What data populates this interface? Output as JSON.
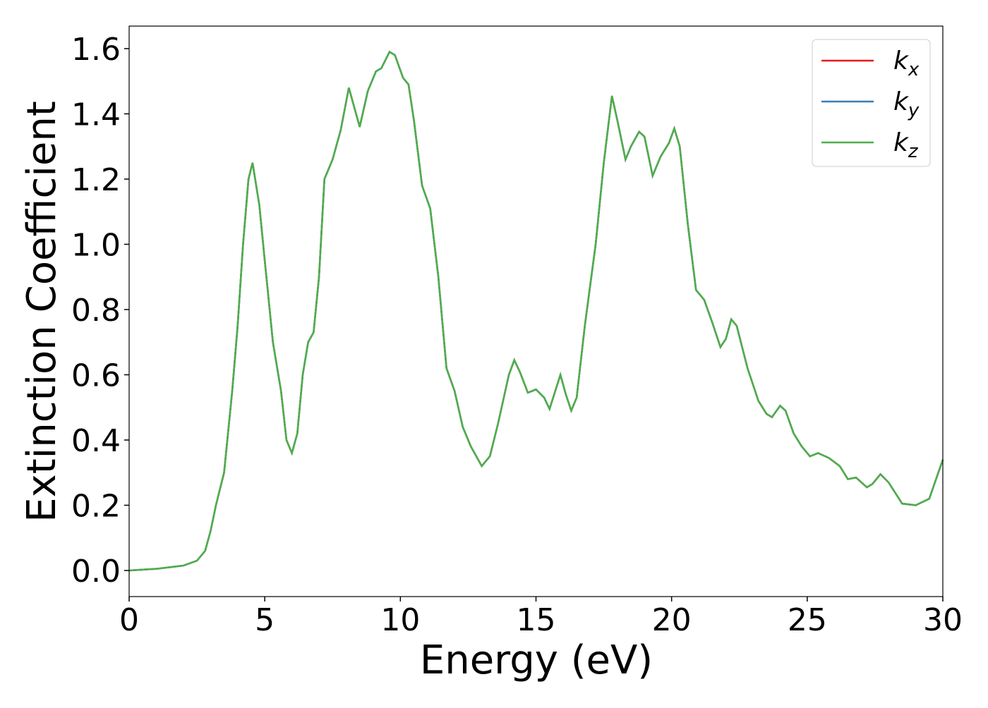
{
  "chart_data": {
    "type": "line",
    "xlabel": "Energy (eV)",
    "ylabel": "Extinction Coefficient",
    "x": [
      0,
      1,
      2,
      2.5,
      2.8,
      3.0,
      3.2,
      3.5,
      3.8,
      4.0,
      4.2,
      4.4,
      4.55,
      4.8,
      5.0,
      5.3,
      5.6,
      5.8,
      6.0,
      6.2,
      6.4,
      6.6,
      6.8,
      7.0,
      7.2,
      7.5,
      7.8,
      8.1,
      8.3,
      8.5,
      8.8,
      9.1,
      9.3,
      9.6,
      9.8,
      10.1,
      10.3,
      10.5,
      10.8,
      11.1,
      11.4,
      11.7,
      12.0,
      12.3,
      12.6,
      13.0,
      13.3,
      13.6,
      14.0,
      14.2,
      14.4,
      14.7,
      15.0,
      15.3,
      15.5,
      15.9,
      16.1,
      16.3,
      16.5,
      16.8,
      17.2,
      17.5,
      17.8,
      18.0,
      18.3,
      18.5,
      18.8,
      19.0,
      19.3,
      19.6,
      19.9,
      20.1,
      20.3,
      20.6,
      20.9,
      21.2,
      21.5,
      21.8,
      22.0,
      22.2,
      22.4,
      22.8,
      23.2,
      23.5,
      23.7,
      24.0,
      24.2,
      24.5,
      24.8,
      25.1,
      25.4,
      25.8,
      26.2,
      26.5,
      26.8,
      27.2,
      27.4,
      27.7,
      28.0,
      28.5,
      29.0,
      29.5,
      30
    ],
    "series": [
      {
        "name": "k_x",
        "color": "#e41a1c",
        "values": [
          0,
          0.005,
          0.015,
          0.03,
          0.06,
          0.12,
          0.2,
          0.3,
          0.55,
          0.75,
          1.0,
          1.2,
          1.25,
          1.12,
          0.95,
          0.7,
          0.55,
          0.4,
          0.36,
          0.42,
          0.6,
          0.7,
          0.73,
          0.9,
          1.2,
          1.26,
          1.35,
          1.48,
          1.42,
          1.36,
          1.47,
          1.53,
          1.54,
          1.59,
          1.58,
          1.51,
          1.49,
          1.38,
          1.18,
          1.11,
          0.9,
          0.62,
          0.55,
          0.44,
          0.38,
          0.32,
          0.35,
          0.45,
          0.6,
          0.645,
          0.61,
          0.545,
          0.555,
          0.53,
          0.495,
          0.6,
          0.54,
          0.49,
          0.53,
          0.75,
          1.0,
          1.25,
          1.455,
          1.38,
          1.26,
          1.3,
          1.345,
          1.33,
          1.21,
          1.27,
          1.31,
          1.355,
          1.3,
          1.06,
          0.86,
          0.83,
          0.76,
          0.685,
          0.71,
          0.77,
          0.75,
          0.62,
          0.52,
          0.48,
          0.47,
          0.505,
          0.49,
          0.42,
          0.38,
          0.35,
          0.36,
          0.345,
          0.32,
          0.28,
          0.285,
          0.255,
          0.265,
          0.295,
          0.27,
          0.205,
          0.2,
          0.22,
          0.34
        ]
      },
      {
        "name": "k_y",
        "color": "#377eb8",
        "values": [
          0,
          0.005,
          0.015,
          0.03,
          0.06,
          0.12,
          0.2,
          0.3,
          0.55,
          0.75,
          1.0,
          1.2,
          1.25,
          1.12,
          0.95,
          0.7,
          0.55,
          0.4,
          0.36,
          0.42,
          0.6,
          0.7,
          0.73,
          0.9,
          1.2,
          1.26,
          1.35,
          1.48,
          1.42,
          1.36,
          1.47,
          1.53,
          1.54,
          1.59,
          1.58,
          1.51,
          1.49,
          1.38,
          1.18,
          1.11,
          0.9,
          0.62,
          0.55,
          0.44,
          0.38,
          0.32,
          0.35,
          0.45,
          0.6,
          0.645,
          0.61,
          0.545,
          0.555,
          0.53,
          0.495,
          0.6,
          0.54,
          0.49,
          0.53,
          0.75,
          1.0,
          1.25,
          1.455,
          1.38,
          1.26,
          1.3,
          1.345,
          1.33,
          1.21,
          1.27,
          1.31,
          1.355,
          1.3,
          1.06,
          0.86,
          0.83,
          0.76,
          0.685,
          0.71,
          0.77,
          0.75,
          0.62,
          0.52,
          0.48,
          0.47,
          0.505,
          0.49,
          0.42,
          0.38,
          0.35,
          0.36,
          0.345,
          0.32,
          0.28,
          0.285,
          0.255,
          0.265,
          0.295,
          0.27,
          0.205,
          0.2,
          0.22,
          0.34
        ]
      },
      {
        "name": "k_z",
        "color": "#4daf4a",
        "values": [
          0,
          0.005,
          0.015,
          0.03,
          0.06,
          0.12,
          0.2,
          0.3,
          0.55,
          0.75,
          1.0,
          1.2,
          1.25,
          1.12,
          0.95,
          0.7,
          0.55,
          0.4,
          0.36,
          0.42,
          0.6,
          0.7,
          0.73,
          0.9,
          1.2,
          1.26,
          1.35,
          1.48,
          1.42,
          1.36,
          1.47,
          1.53,
          1.54,
          1.59,
          1.58,
          1.51,
          1.49,
          1.38,
          1.18,
          1.11,
          0.9,
          0.62,
          0.55,
          0.44,
          0.38,
          0.32,
          0.35,
          0.45,
          0.6,
          0.645,
          0.61,
          0.545,
          0.555,
          0.53,
          0.495,
          0.6,
          0.54,
          0.49,
          0.53,
          0.75,
          1.0,
          1.25,
          1.455,
          1.38,
          1.26,
          1.3,
          1.345,
          1.33,
          1.21,
          1.27,
          1.31,
          1.355,
          1.3,
          1.06,
          0.86,
          0.83,
          0.76,
          0.685,
          0.71,
          0.77,
          0.75,
          0.62,
          0.52,
          0.48,
          0.47,
          0.505,
          0.49,
          0.42,
          0.38,
          0.35,
          0.36,
          0.345,
          0.32,
          0.28,
          0.285,
          0.255,
          0.265,
          0.295,
          0.27,
          0.205,
          0.2,
          0.22,
          0.34
        ]
      }
    ],
    "xlim": [
      0,
      30
    ],
    "xticks": [
      0,
      5,
      10,
      15,
      20,
      25,
      30
    ],
    "ylim": [
      -0.08,
      1.669
    ],
    "yticks": [
      {
        "value": 0,
        "label": "0.0"
      },
      0.2,
      0.4,
      0.6,
      0.8,
      {
        "value": 1,
        "label": "1.0"
      },
      1.2,
      1.4,
      1.6
    ],
    "grid": false,
    "legend": "upper right"
  }
}
